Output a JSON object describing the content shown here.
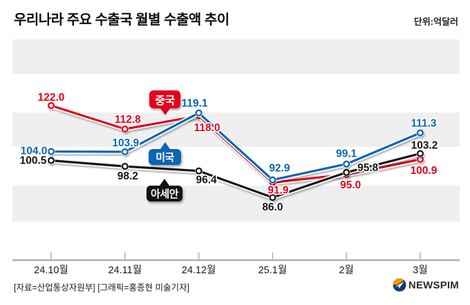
{
  "header": {
    "title": "우리나라 주요 수출국 월별 수출액 추이",
    "unit": "단위:억달러"
  },
  "chart_data": {
    "type": "line",
    "title": "우리나라 주요 수출국 월별 수출액 추이",
    "unit": "억달러",
    "categories": [
      "24.10월",
      "24.11월",
      "24.12월",
      "25.1월",
      "2월",
      "3월"
    ],
    "series": [
      {
        "key": "china",
        "name": "중국",
        "color": "#e60019",
        "values": [
          122.0,
          112.8,
          118.0,
          91.9,
          95.0,
          100.9
        ],
        "label_offsets": [
          [
            0,
            -12
          ],
          [
            4,
            -14
          ],
          [
            12,
            17
          ],
          [
            8,
            11
          ],
          [
            6,
            15
          ],
          [
            5,
            16
          ]
        ]
      },
      {
        "key": "usa",
        "name": "미국",
        "color": "#0e64b5",
        "values": [
          104.0,
          103.9,
          119.1,
          92.9,
          99.1,
          111.3
        ],
        "label_offsets": [
          [
            -25,
            -1
          ],
          [
            1,
            -13
          ],
          [
            -6,
            -14
          ],
          [
            10,
            -17
          ],
          [
            0,
            -15
          ],
          [
            5,
            -14
          ]
        ]
      },
      {
        "key": "asean",
        "name": "아세안",
        "color": "#131313",
        "values": [
          100.5,
          98.2,
          96.4,
          86.0,
          95.8,
          103.2
        ],
        "label_offsets": [
          [
            -26,
            0
          ],
          [
            4,
            14
          ],
          [
            11,
            13
          ],
          [
            0,
            14
          ],
          [
            31,
            -7
          ],
          [
            6,
            -12
          ]
        ]
      }
    ],
    "legend_position": "inline-badges",
    "grid": "horizontal-stripes",
    "value_labels": "shown-one-decimal",
    "ylim": [
      80,
      130
    ]
  },
  "footer": {
    "credit": "[자료=산업통상자원부] [그래픽=홍종현 미술기자]",
    "logo_text": "NEWSPIM"
  }
}
